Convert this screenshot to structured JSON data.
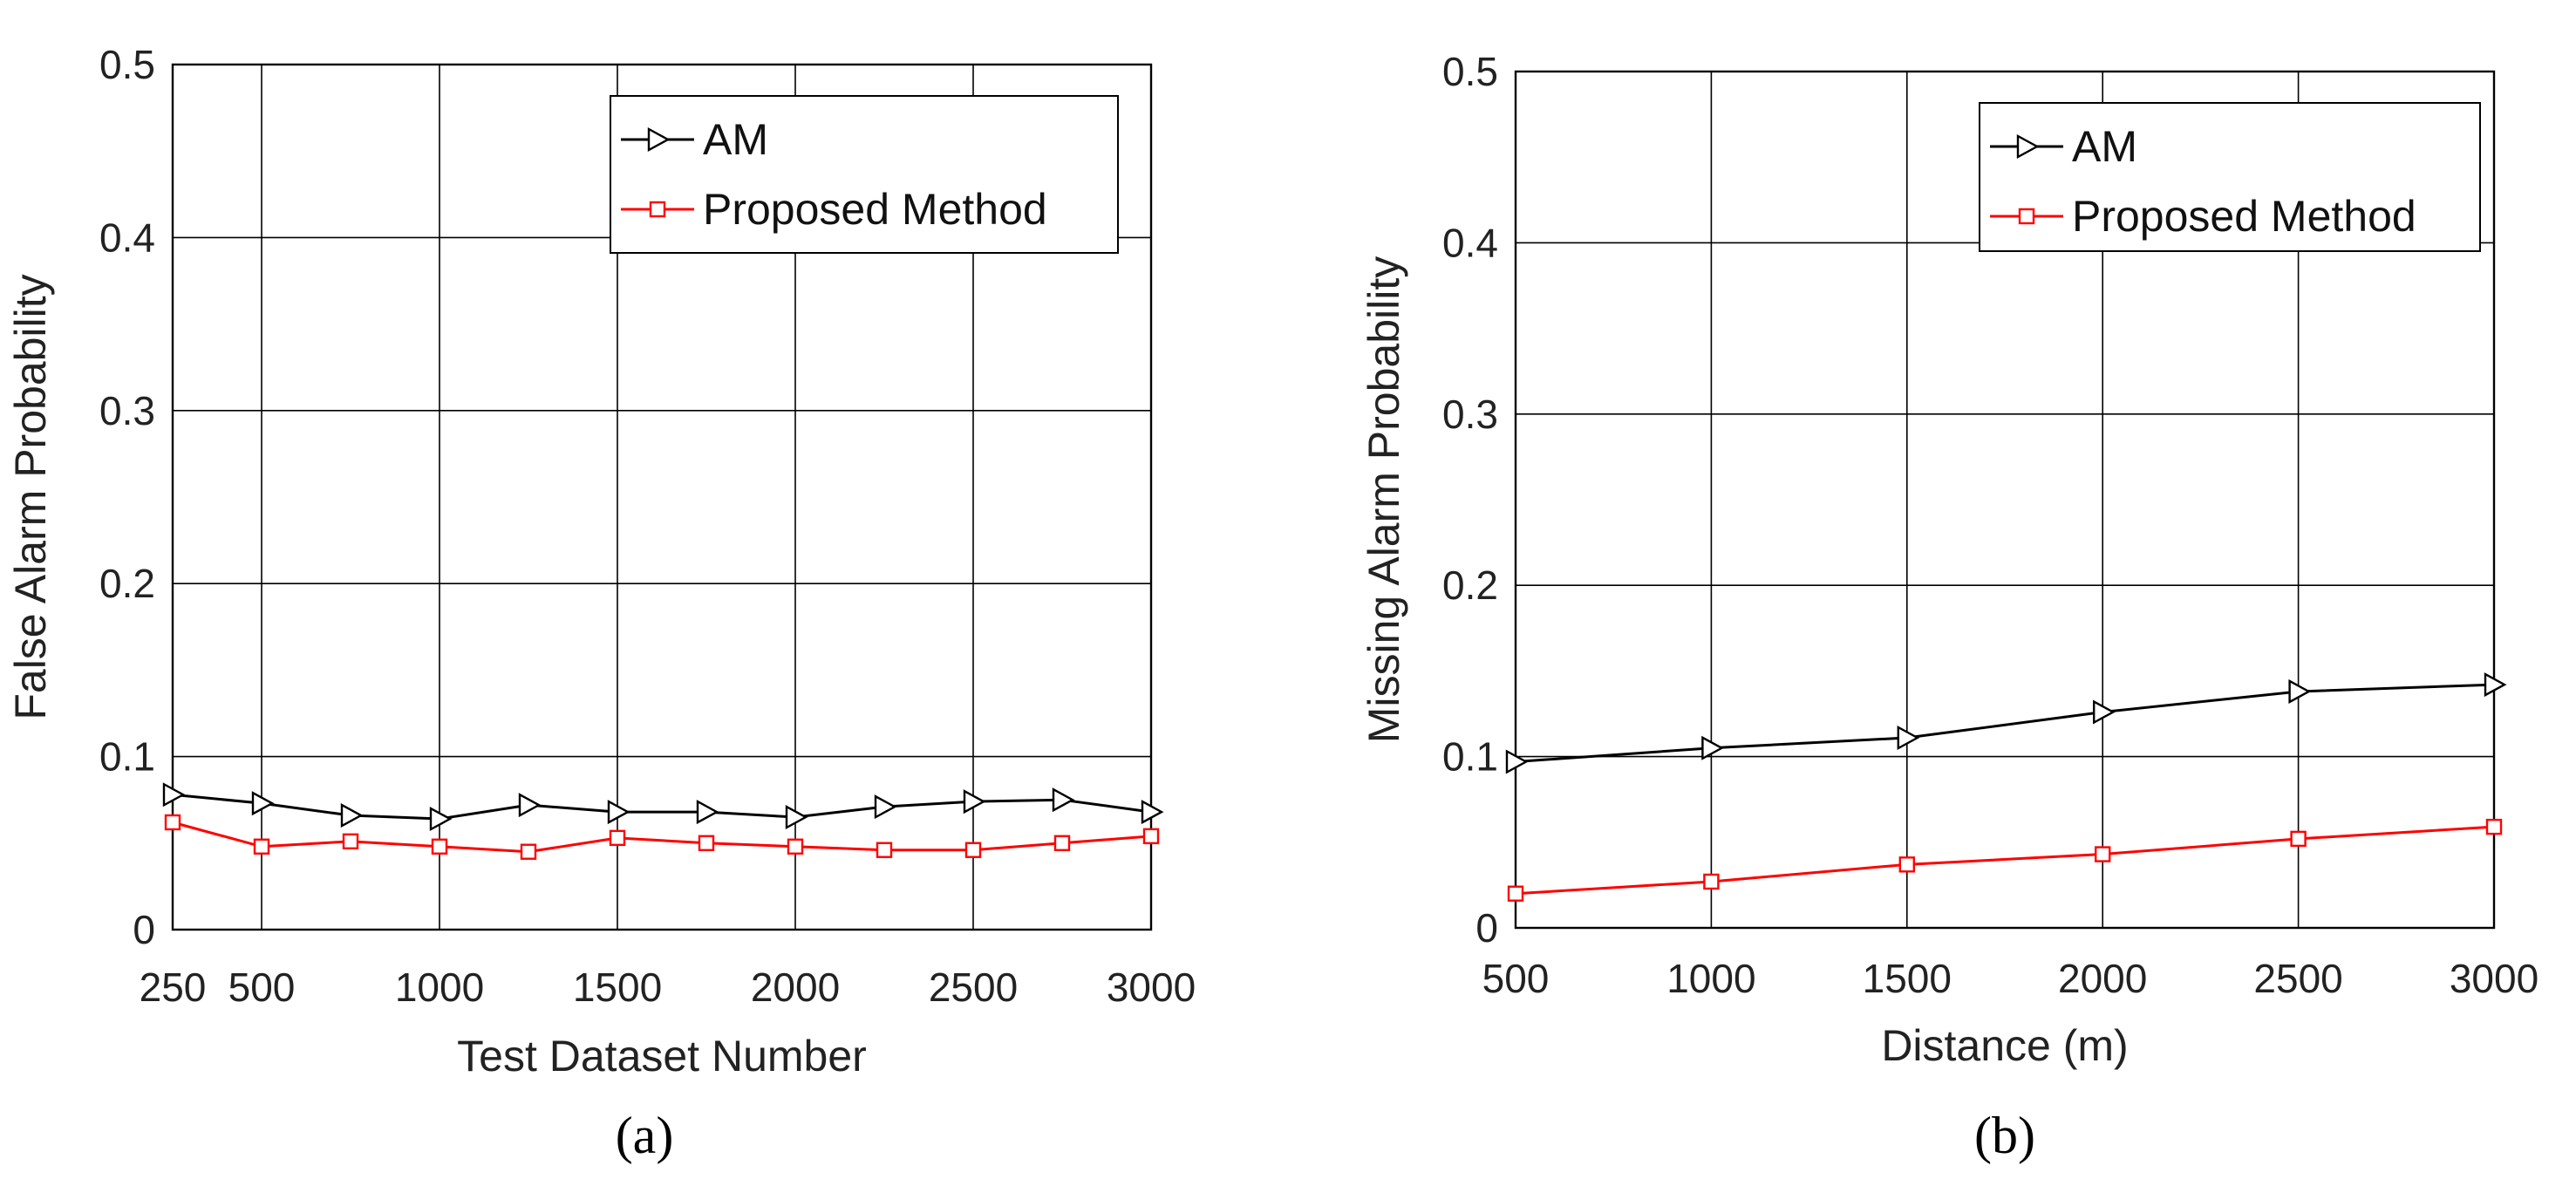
{
  "chart_data": [
    {
      "type": "line",
      "panel_label": "(a)",
      "xlabel": "Test Dataset Number",
      "ylabel": "False Alarm Probability",
      "xlim": [
        250,
        3000
      ],
      "ylim": [
        0,
        0.5
      ],
      "xticks": [
        250,
        500,
        1000,
        1500,
        2000,
        2500,
        3000
      ],
      "xtick_labels": [
        "250",
        "500",
        "1000",
        "1500",
        "2000",
        "2500",
        "3000"
      ],
      "xgrid": [
        500,
        1000,
        1500,
        2000,
        2500
      ],
      "yticks": [
        0,
        0.1,
        0.2,
        0.3,
        0.4,
        0.5
      ],
      "ytick_labels": [
        "0",
        "0.1",
        "0.2",
        "0.3",
        "0.4",
        "0.5"
      ],
      "legend_position": "top-right",
      "x": [
        250,
        500,
        750,
        1000,
        1250,
        1500,
        1750,
        2000,
        2250,
        2500,
        2750,
        3000
      ],
      "series": [
        {
          "name": "AM",
          "color": "#000000",
          "marker": "triangle-right",
          "values": [
            0.078,
            0.073,
            0.066,
            0.064,
            0.072,
            0.068,
            0.068,
            0.065,
            0.071,
            0.074,
            0.075,
            0.068
          ]
        },
        {
          "name": "Proposed Method",
          "color": "#ff0000",
          "marker": "square",
          "values": [
            0.062,
            0.048,
            0.051,
            0.048,
            0.045,
            0.053,
            0.05,
            0.048,
            0.046,
            0.046,
            0.05,
            0.054
          ]
        }
      ]
    },
    {
      "type": "line",
      "panel_label": "(b)",
      "xlabel": "Distance (m)",
      "ylabel": "Missing Alarm Probability",
      "xlim": [
        500,
        3000
      ],
      "ylim": [
        0,
        0.5
      ],
      "xticks": [
        500,
        1000,
        1500,
        2000,
        2500,
        3000
      ],
      "xtick_labels": [
        "500",
        "1000",
        "1500",
        "2000",
        "2500",
        "3000"
      ],
      "xgrid": [
        1000,
        1500,
        2000,
        2500
      ],
      "yticks": [
        0,
        0.1,
        0.2,
        0.3,
        0.4,
        0.5
      ],
      "ytick_labels": [
        "0",
        "0.1",
        "0.2",
        "0.3",
        "0.4",
        "0.5"
      ],
      "legend_position": "top-right",
      "x": [
        500,
        1000,
        1500,
        2000,
        2500,
        3000
      ],
      "series": [
        {
          "name": "AM",
          "color": "#000000",
          "marker": "triangle-right",
          "values": [
            0.097,
            0.105,
            0.111,
            0.126,
            0.138,
            0.142
          ]
        },
        {
          "name": "Proposed Method",
          "color": "#ff0000",
          "marker": "square",
          "values": [
            0.02,
            0.027,
            0.037,
            0.043,
            0.052,
            0.059
          ]
        }
      ]
    }
  ]
}
